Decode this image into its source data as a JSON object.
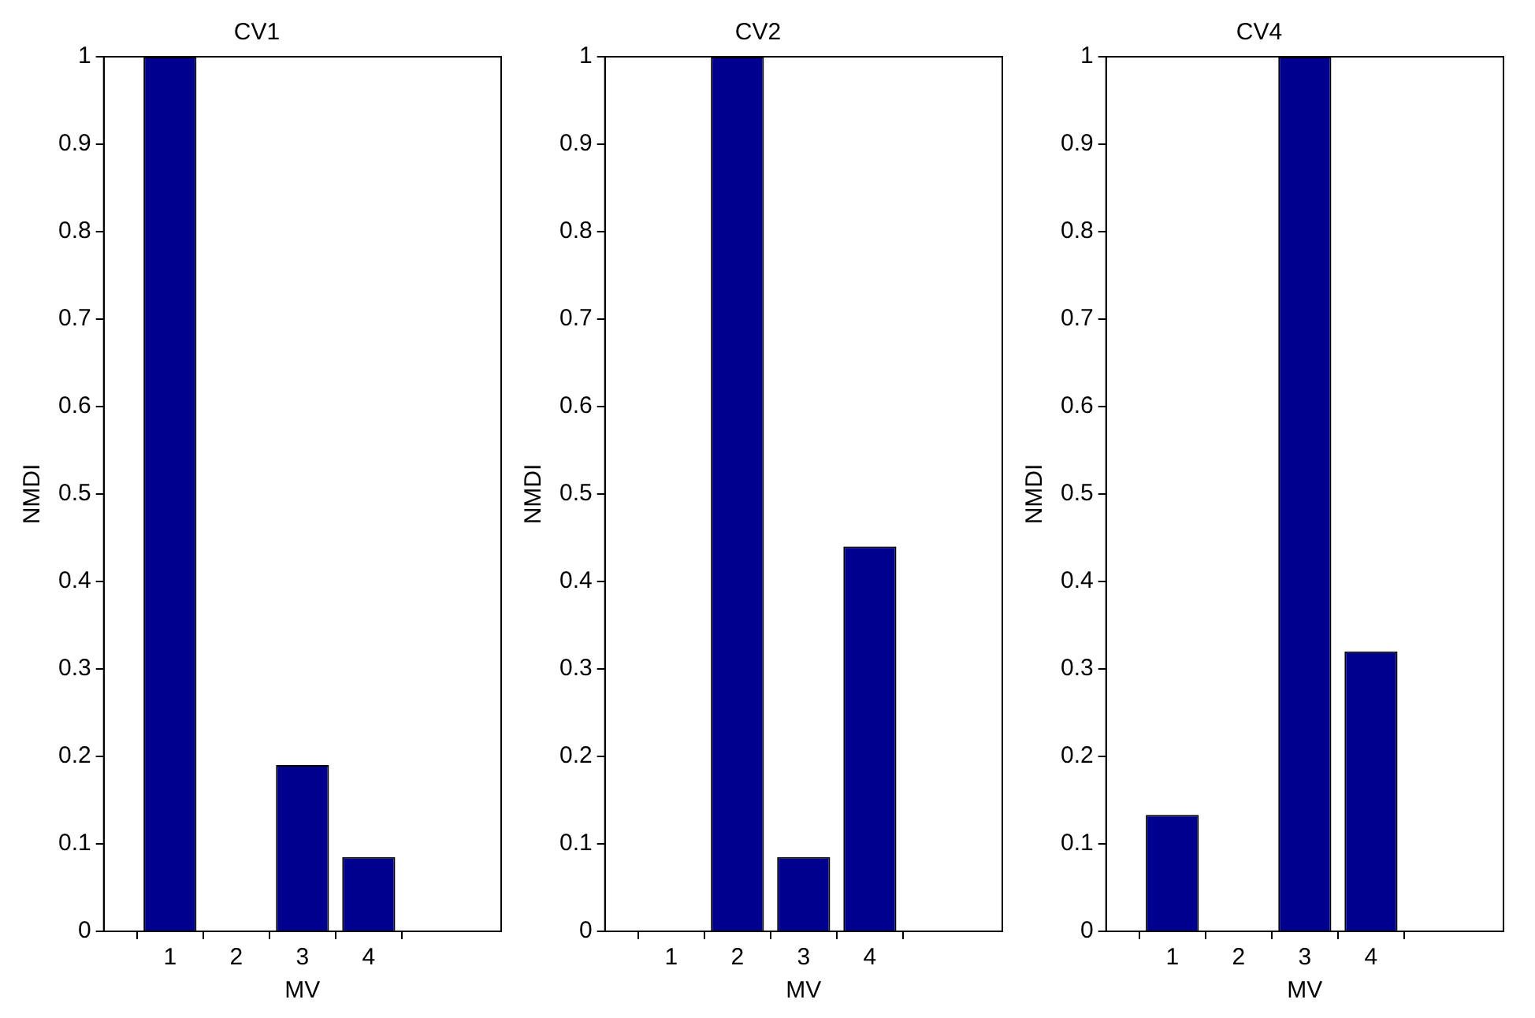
{
  "chart_data": [
    {
      "type": "bar",
      "title": "CV1",
      "xlabel": "MV",
      "ylabel": "NMDI",
      "x": [
        1,
        2,
        3,
        4
      ],
      "xlim": [
        0,
        6
      ],
      "xticks": [
        1,
        2,
        3,
        4
      ],
      "ylim": [
        0,
        1
      ],
      "yticks": [
        0,
        0.1,
        0.2,
        0.3,
        0.4,
        0.5,
        0.6,
        0.7,
        0.8,
        0.9,
        1
      ],
      "color": "#00008f",
      "grid": false,
      "legend": false,
      "values": [
        1,
        0,
        0.19,
        0.085
      ]
    },
    {
      "type": "bar",
      "title": "CV2",
      "xlabel": "MV",
      "ylabel": "NMDI",
      "x": [
        1,
        2,
        3,
        4
      ],
      "xlim": [
        0,
        6
      ],
      "xticks": [
        1,
        2,
        3,
        4
      ],
      "ylim": [
        0,
        1
      ],
      "yticks": [
        0,
        0.1,
        0.2,
        0.3,
        0.4,
        0.5,
        0.6,
        0.7,
        0.8,
        0.9,
        1
      ],
      "color": "#00008f",
      "grid": false,
      "legend": false,
      "values": [
        0,
        1,
        0.085,
        0.44
      ]
    },
    {
      "type": "bar",
      "title": "CV4",
      "xlabel": "MV",
      "ylabel": "NMDI",
      "x": [
        1,
        2,
        3,
        4
      ],
      "xlim": [
        0,
        6
      ],
      "xticks": [
        1,
        2,
        3,
        4
      ],
      "ylim": [
        0,
        1
      ],
      "yticks": [
        0,
        0.1,
        0.2,
        0.3,
        0.4,
        0.5,
        0.6,
        0.7,
        0.8,
        0.9,
        1
      ],
      "color": "#00008f",
      "grid": false,
      "legend": false,
      "values": [
        0.133,
        0,
        1,
        0.32
      ]
    }
  ]
}
